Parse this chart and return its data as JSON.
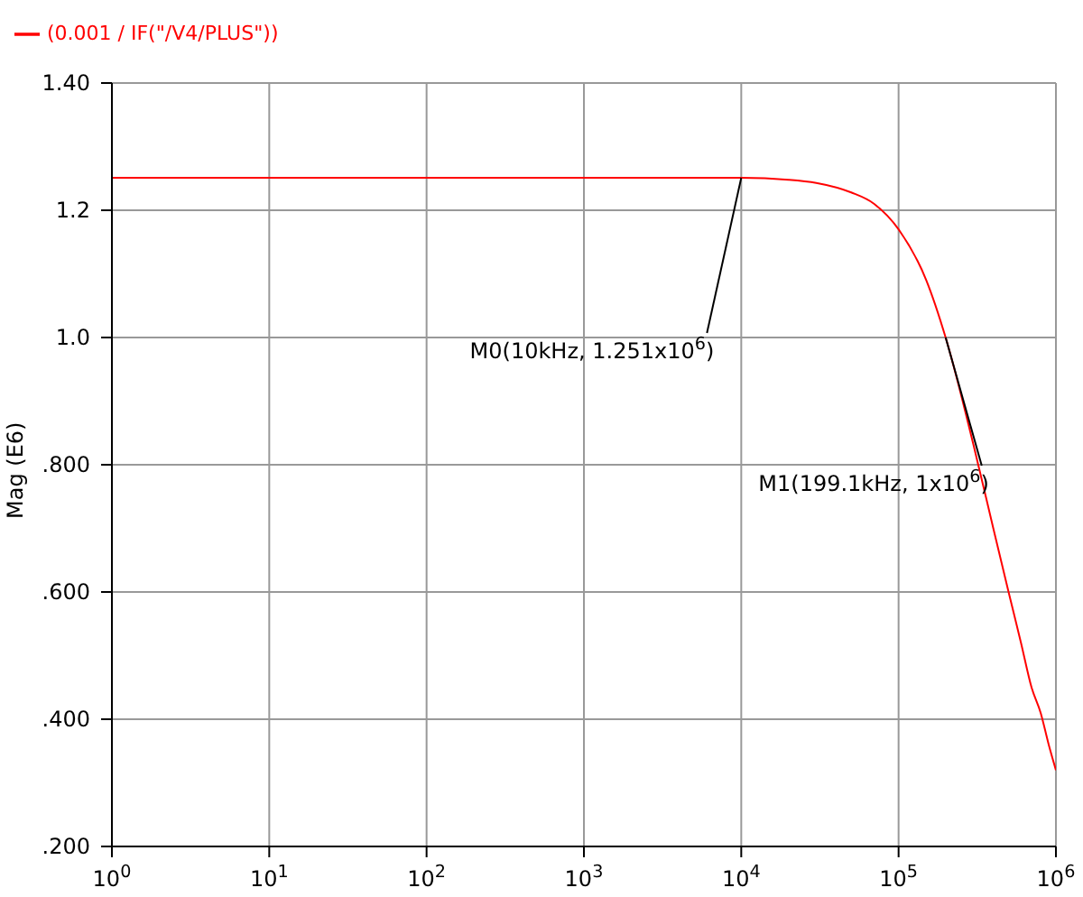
{
  "chart_data": {
    "type": "line",
    "ylabel": "Mag (E6)",
    "x": [
      1,
      10,
      100,
      1000,
      10000,
      20000,
      30000,
      50000,
      70000,
      100000,
      150000,
      199100,
      300000,
      400000,
      500000,
      600000,
      700000,
      800000,
      900000,
      1000000
    ],
    "series": [
      {
        "name": "(0.001 / IF(\"/V4/PLUS\"))",
        "color": "#ff0000",
        "values": [
          1.251,
          1.251,
          1.251,
          1.251,
          1.251,
          1.248,
          1.243,
          1.228,
          1.21,
          1.17,
          1.09,
          1.0,
          0.83,
          0.7,
          0.6,
          0.52,
          0.45,
          0.41,
          0.36,
          0.32
        ]
      }
    ],
    "log": "x",
    "xlim": [
      1,
      1000000
    ],
    "xticks": [
      {
        "value": 1,
        "label": "10$^{0}$"
      },
      {
        "value": 10,
        "label": "10$^{1}$"
      },
      {
        "value": 100,
        "label": "10$^{2}$"
      },
      {
        "value": 1000,
        "label": "10$^{3}$"
      },
      {
        "value": 10000,
        "label": "10$^{4}$"
      },
      {
        "value": 100000,
        "label": "10$^{5}$"
      },
      {
        "value": 1000000,
        "label": "10$^{6}$"
      }
    ],
    "ylim": [
      0.2,
      1.4
    ],
    "yticks": [
      {
        "value": 0.2,
        "label": ".200"
      },
      {
        "value": 0.4,
        "label": ".400"
      },
      {
        "value": 0.6,
        "label": ".600"
      },
      {
        "value": 0.8,
        "label": ".800"
      },
      {
        "value": 1.0,
        "label": "1.0"
      },
      {
        "value": 1.2,
        "label": "1.2"
      },
      {
        "value": 1.4,
        "label": "1.40"
      }
    ],
    "annotations": [
      {
        "text": "M0(10kHz, 1.251x10$^{6}$)",
        "x": 10000,
        "y": 1.251
      },
      {
        "text": "M1(199.1kHz, 1x10$^{6}$)",
        "x": 199100,
        "y": 1.0
      }
    ],
    "grid": true,
    "legend": "top left",
    "marker": "none",
    "line_style": "solid"
  }
}
